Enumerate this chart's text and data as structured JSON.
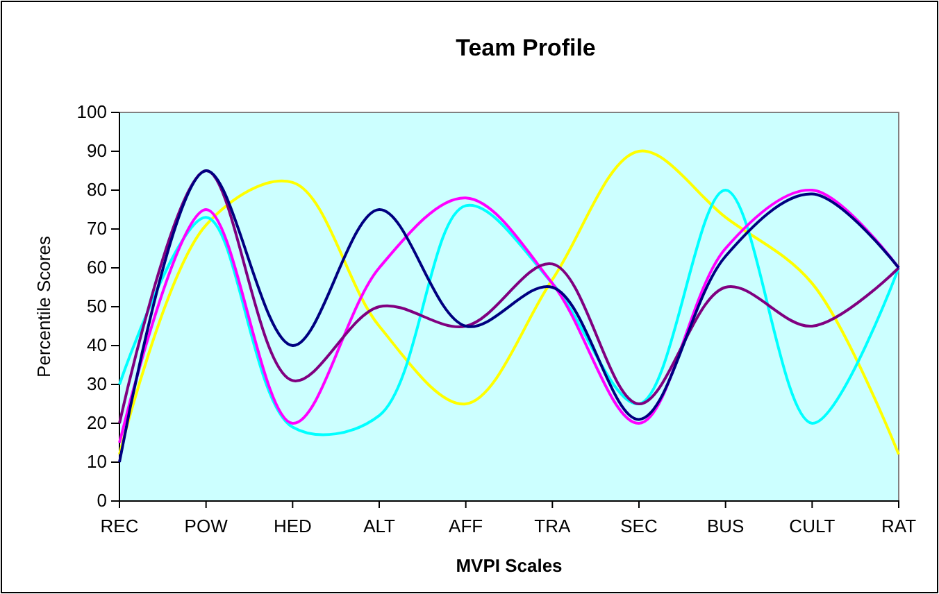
{
  "chart_data": {
    "type": "line",
    "title": "Team Profile",
    "xlabel": "MVPI Scales",
    "ylabel": "Percentile Scores",
    "categories": [
      "REC",
      "POW",
      "HED",
      "ALT",
      "AFF",
      "TRA",
      "SEC",
      "BUS",
      "CULT",
      "RAT"
    ],
    "ylim": [
      0,
      100
    ],
    "yticks": [
      0,
      10,
      20,
      30,
      40,
      50,
      60,
      70,
      80,
      90,
      100
    ],
    "grid": false,
    "legend": false,
    "marker": "none",
    "line_style": "solid",
    "series": [
      {
        "color": "#ffff00",
        "values": [
          12,
          71,
          82,
          45,
          25,
          57,
          90,
          73,
          56,
          12
        ]
      },
      {
        "color": "#00ffff",
        "values": [
          30,
          73,
          19,
          22,
          76,
          56,
          25,
          80,
          20,
          60
        ]
      },
      {
        "color": "#ff00ff",
        "values": [
          15,
          75,
          20,
          60,
          78,
          56,
          20,
          65,
          80,
          60
        ]
      },
      {
        "color": "#800080",
        "values": [
          20,
          85,
          31,
          50,
          45,
          61,
          25,
          55,
          45,
          60
        ]
      },
      {
        "color": "#000080",
        "values": [
          10,
          85,
          40,
          75,
          45,
          55,
          21,
          63,
          79,
          60
        ]
      }
    ]
  }
}
